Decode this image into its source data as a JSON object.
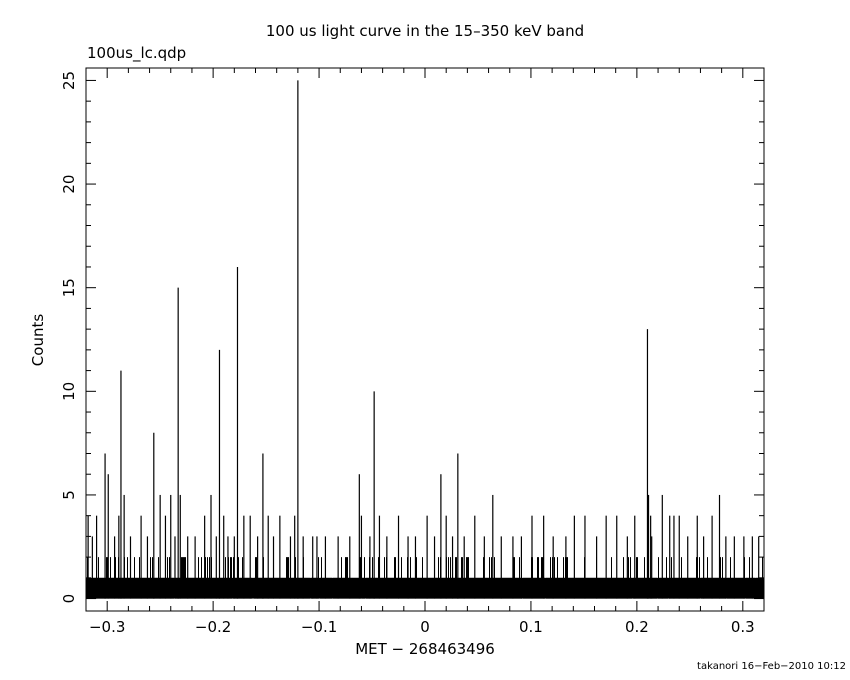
{
  "chart_data": {
    "type": "bar",
    "title": "100 us light curve in the 15–350 keV band",
    "subtitle": "100us_lc.qdp",
    "xlabel": "MET − 268463496",
    "ylabel": "Counts",
    "xlim": [
      -0.32,
      0.32
    ],
    "ylim": [
      -0.6,
      25.6
    ],
    "x_ticks": [
      -0.3,
      -0.2,
      -0.1,
      0,
      0.1,
      0.2,
      0.3
    ],
    "x_tick_labels": [
      "−0.3",
      "−0.2",
      "−0.1",
      "0",
      "0.1",
      "0.2",
      "0.3"
    ],
    "y_ticks": [
      0,
      5,
      10,
      15,
      20,
      25
    ],
    "y_tick_labels": [
      "0",
      "5",
      "10",
      "15",
      "20",
      "25"
    ],
    "bin_width": 0.0001,
    "background_level": 2,
    "background_range": [
      -0.32,
      0.32
    ],
    "spikes": [
      {
        "x": -0.318,
        "y": 4
      },
      {
        "x": -0.314,
        "y": 3
      },
      {
        "x": -0.31,
        "y": 4
      },
      {
        "x": -0.302,
        "y": 7
      },
      {
        "x": -0.299,
        "y": 6
      },
      {
        "x": -0.293,
        "y": 3
      },
      {
        "x": -0.289,
        "y": 4
      },
      {
        "x": -0.287,
        "y": 11
      },
      {
        "x": -0.284,
        "y": 5
      },
      {
        "x": -0.278,
        "y": 3
      },
      {
        "x": -0.268,
        "y": 4
      },
      {
        "x": -0.262,
        "y": 3
      },
      {
        "x": -0.256,
        "y": 8
      },
      {
        "x": -0.25,
        "y": 5
      },
      {
        "x": -0.245,
        "y": 4
      },
      {
        "x": -0.24,
        "y": 5
      },
      {
        "x": -0.236,
        "y": 3
      },
      {
        "x": -0.233,
        "y": 15
      },
      {
        "x": -0.231,
        "y": 5
      },
      {
        "x": -0.224,
        "y": 3
      },
      {
        "x": -0.217,
        "y": 3
      },
      {
        "x": -0.208,
        "y": 4
      },
      {
        "x": -0.202,
        "y": 5
      },
      {
        "x": -0.197,
        "y": 3
      },
      {
        "x": -0.194,
        "y": 12
      },
      {
        "x": -0.19,
        "y": 4
      },
      {
        "x": -0.186,
        "y": 3
      },
      {
        "x": -0.18,
        "y": 3
      },
      {
        "x": -0.177,
        "y": 16
      },
      {
        "x": -0.171,
        "y": 4
      },
      {
        "x": -0.165,
        "y": 4
      },
      {
        "x": -0.158,
        "y": 3
      },
      {
        "x": -0.153,
        "y": 7
      },
      {
        "x": -0.148,
        "y": 4
      },
      {
        "x": -0.143,
        "y": 3
      },
      {
        "x": -0.137,
        "y": 4
      },
      {
        "x": -0.127,
        "y": 3
      },
      {
        "x": -0.123,
        "y": 4
      },
      {
        "x": -0.12,
        "y": 25
      },
      {
        "x": -0.115,
        "y": 3
      },
      {
        "x": -0.106,
        "y": 3
      },
      {
        "x": -0.102,
        "y": 3
      },
      {
        "x": -0.094,
        "y": 3
      },
      {
        "x": -0.082,
        "y": 3
      },
      {
        "x": -0.071,
        "y": 3
      },
      {
        "x": -0.062,
        "y": 6
      },
      {
        "x": -0.06,
        "y": 4
      },
      {
        "x": -0.052,
        "y": 3
      },
      {
        "x": -0.048,
        "y": 10
      },
      {
        "x": -0.043,
        "y": 4
      },
      {
        "x": -0.036,
        "y": 3
      },
      {
        "x": -0.025,
        "y": 4
      },
      {
        "x": -0.016,
        "y": 3
      },
      {
        "x": -0.009,
        "y": 3
      },
      {
        "x": 0.002,
        "y": 4
      },
      {
        "x": 0.009,
        "y": 3
      },
      {
        "x": 0.015,
        "y": 6
      },
      {
        "x": 0.02,
        "y": 4
      },
      {
        "x": 0.026,
        "y": 3
      },
      {
        "x": 0.031,
        "y": 7
      },
      {
        "x": 0.037,
        "y": 3
      },
      {
        "x": 0.047,
        "y": 4
      },
      {
        "x": 0.056,
        "y": 3
      },
      {
        "x": 0.064,
        "y": 5
      },
      {
        "x": 0.072,
        "y": 3
      },
      {
        "x": 0.083,
        "y": 3
      },
      {
        "x": 0.091,
        "y": 3
      },
      {
        "x": 0.101,
        "y": 4
      },
      {
        "x": 0.112,
        "y": 4
      },
      {
        "x": 0.121,
        "y": 3
      },
      {
        "x": 0.133,
        "y": 3
      },
      {
        "x": 0.141,
        "y": 4
      },
      {
        "x": 0.151,
        "y": 4
      },
      {
        "x": 0.162,
        "y": 3
      },
      {
        "x": 0.171,
        "y": 4
      },
      {
        "x": 0.181,
        "y": 4
      },
      {
        "x": 0.191,
        "y": 3
      },
      {
        "x": 0.198,
        "y": 4
      },
      {
        "x": 0.21,
        "y": 13
      },
      {
        "x": 0.211,
        "y": 5
      },
      {
        "x": 0.213,
        "y": 4
      },
      {
        "x": 0.214,
        "y": 3
      },
      {
        "x": 0.224,
        "y": 5
      },
      {
        "x": 0.231,
        "y": 4
      },
      {
        "x": 0.235,
        "y": 4
      },
      {
        "x": 0.24,
        "y": 4
      },
      {
        "x": 0.248,
        "y": 3
      },
      {
        "x": 0.257,
        "y": 4
      },
      {
        "x": 0.263,
        "y": 3
      },
      {
        "x": 0.271,
        "y": 4
      },
      {
        "x": 0.278,
        "y": 5
      },
      {
        "x": 0.284,
        "y": 3
      },
      {
        "x": 0.292,
        "y": 3
      },
      {
        "x": 0.301,
        "y": 3
      },
      {
        "x": 0.309,
        "y": 3
      },
      {
        "x": 0.315,
        "y": 3
      }
    ],
    "grid": false,
    "line_color": "#000000"
  },
  "footer": {
    "stamp": "takanori 16−Feb−2010 10:12"
  }
}
